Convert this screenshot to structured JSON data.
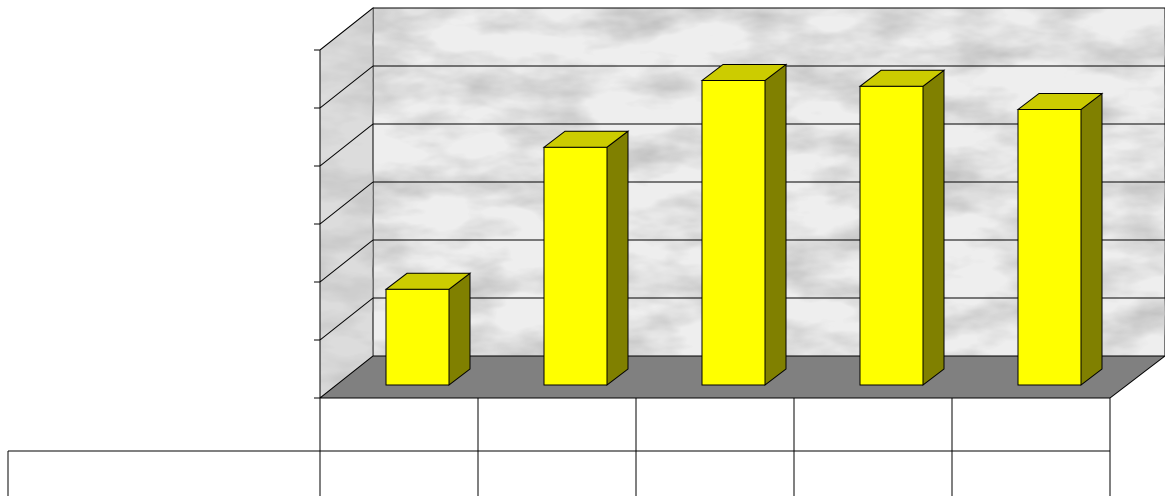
{
  "chart_data": {
    "type": "bar",
    "categories": [
      "",
      "",
      "",
      "",
      ""
    ],
    "series": [
      {
        "values": [
          1.65,
          4.1,
          5.25,
          5.15,
          4.75
        ]
      }
    ],
    "ylim": [
      0,
      6
    ],
    "grid": true,
    "legend": "none",
    "colors": {
      "bar_front": "#ffff00",
      "bar_top": "#cccc00",
      "bar_side": "#808000",
      "floor": "#808080",
      "wall": "#e6e6e6"
    }
  }
}
